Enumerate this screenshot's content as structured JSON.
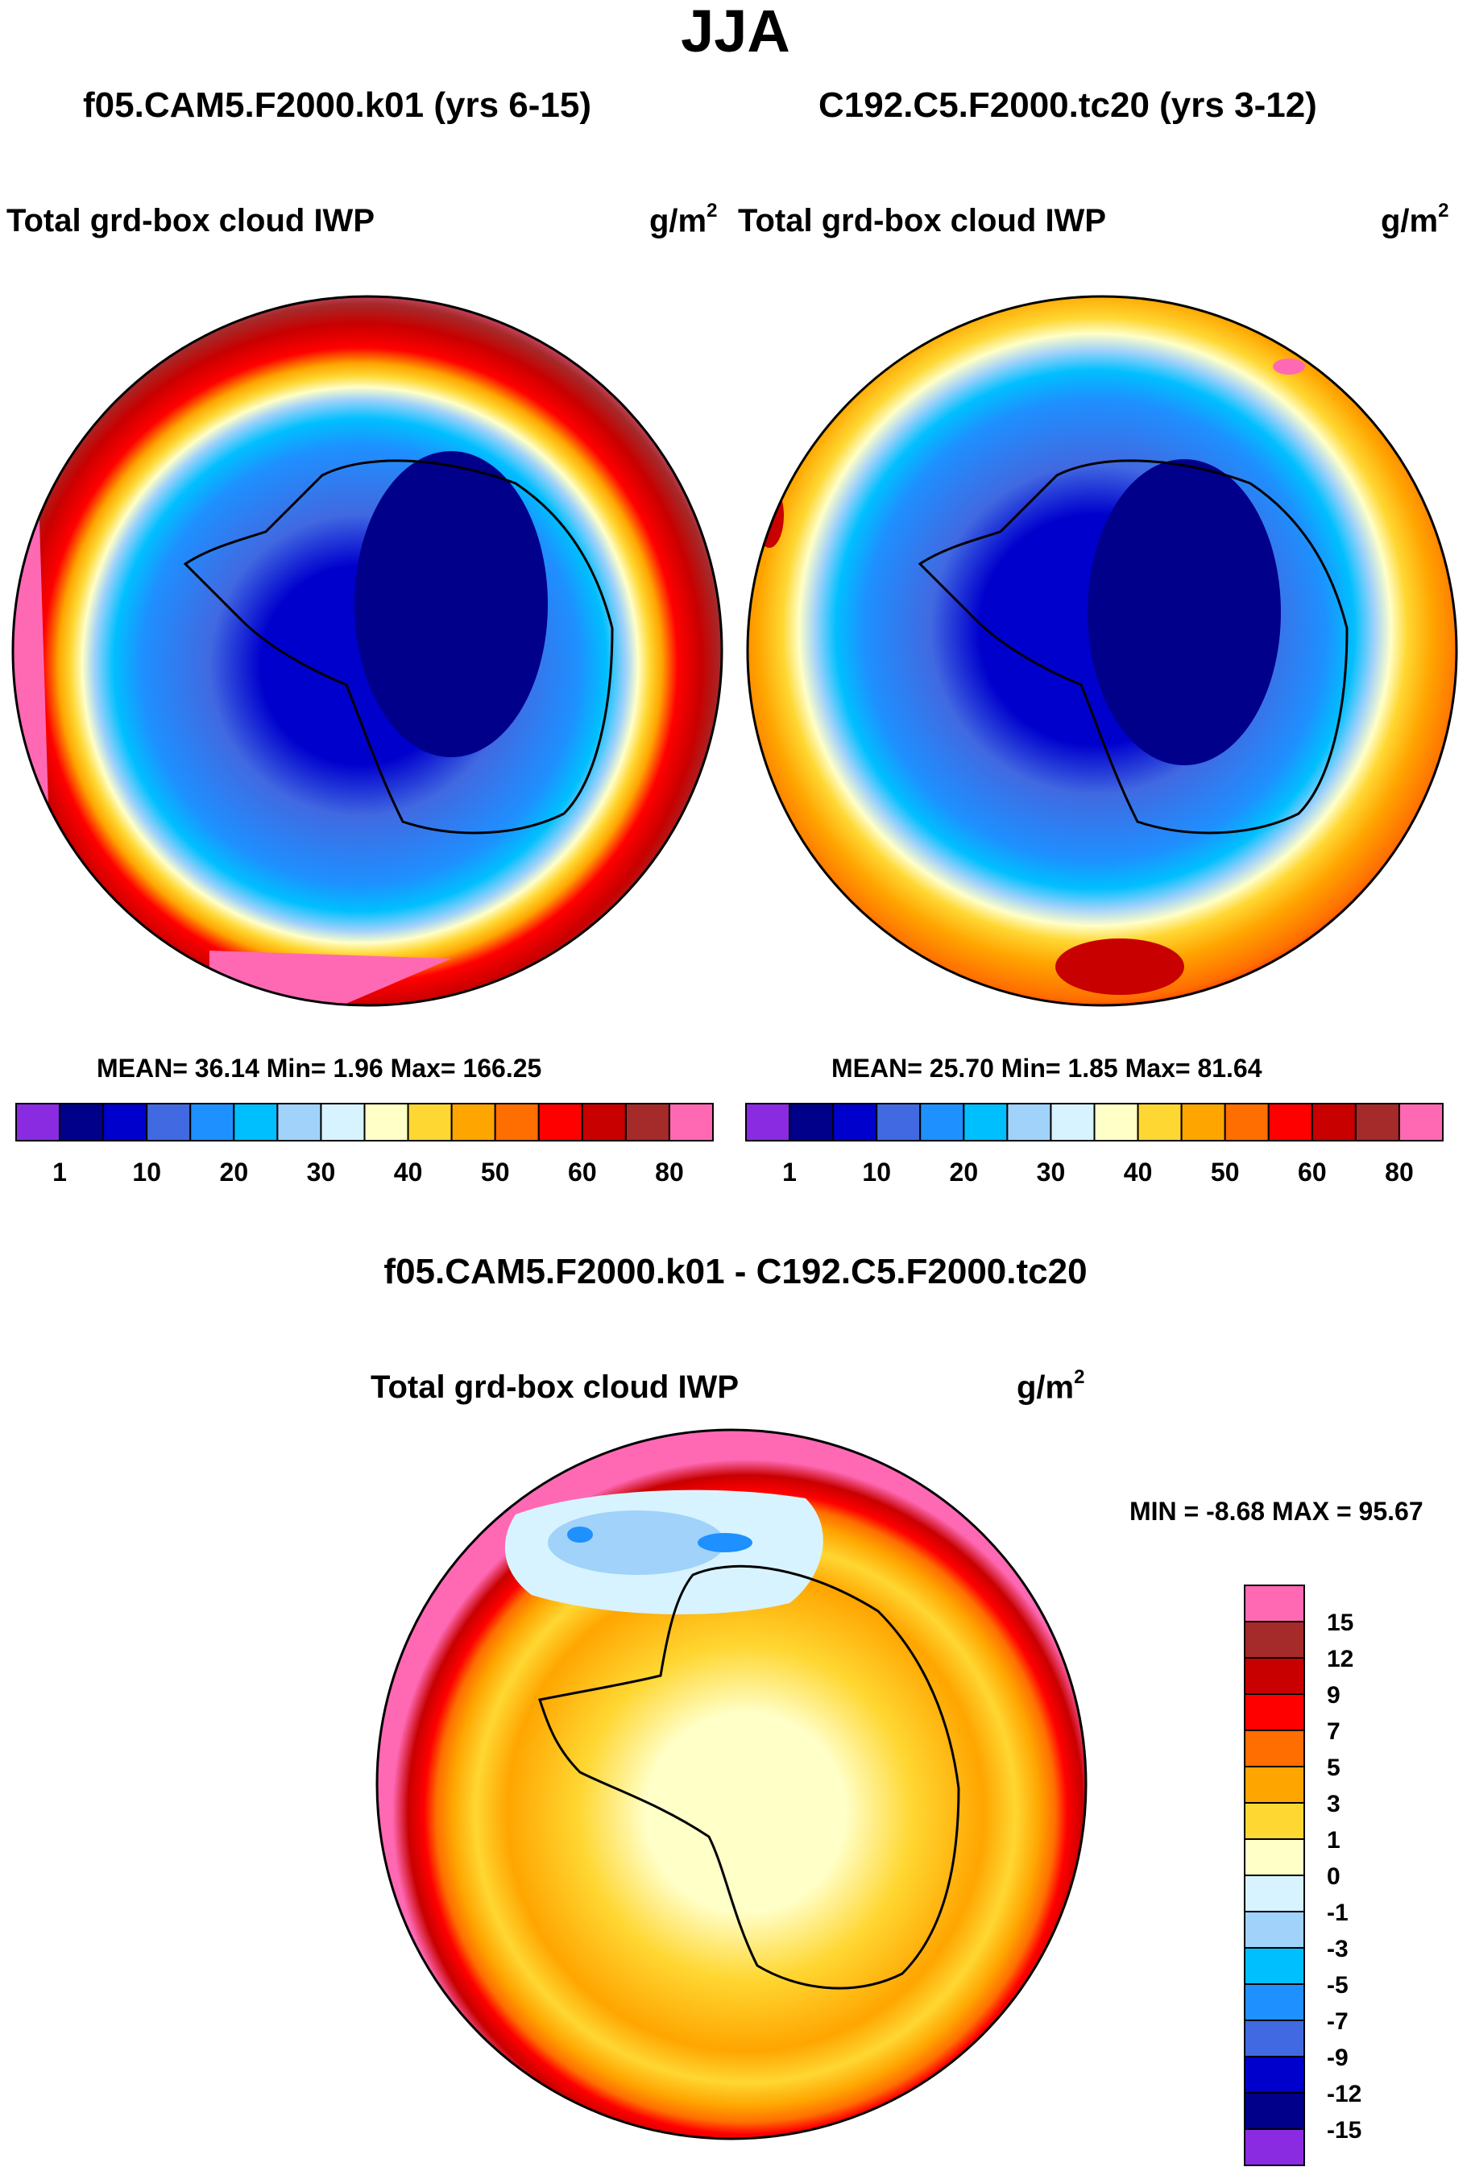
{
  "title": "JJA",
  "panel1": {
    "case": "f05.CAM5.F2000.k01 (yrs 6-15)",
    "var": "Total grd-box cloud IWP",
    "unit_base": "g/m",
    "unit_exp": "2",
    "stats": "MEAN=  36.14  Min=    1.96  Max= 166.25"
  },
  "panel2": {
    "case": "C192.C5.F2000.tc20 (yrs 3-12)",
    "var": "Total grd-box cloud IWP",
    "unit_base": "g/m",
    "unit_exp": "2",
    "stats": "MEAN=  25.70  Min=    1.85  Max=  81.64"
  },
  "diff": {
    "title": "f05.CAM5.F2000.k01 - C192.C5.F2000.tc20",
    "var": "Total grd-box cloud IWP",
    "unit_base": "g/m",
    "unit_exp": "2",
    "stats": "MIN =  -8.68 MAX =  95.67"
  },
  "chart_data": [
    {
      "type": "heatmap",
      "panel": "top-left",
      "projection": "south polar stereographic",
      "colorbar_ticks": [
        "1",
        "10",
        "20",
        "30",
        "40",
        "50",
        "60",
        "80"
      ],
      "colorbar_colors": [
        "#8a2be2",
        "#00008b",
        "#0000cd",
        "#4169e1",
        "#1e90ff",
        "#00bfff",
        "#a0d2fa",
        "#d7f3ff",
        "#ffffc8",
        "#ffd732",
        "#ffa500",
        "#ff6e00",
        "#ff0000",
        "#c80000",
        "#a52a2a",
        "#ff69b4"
      ],
      "mean": 36.14,
      "min": 1.96,
      "max": 166.25
    },
    {
      "type": "heatmap",
      "panel": "top-right",
      "projection": "south polar stereographic",
      "colorbar_ticks": [
        "1",
        "10",
        "20",
        "30",
        "40",
        "50",
        "60",
        "80"
      ],
      "colorbar_colors": [
        "#8a2be2",
        "#00008b",
        "#0000cd",
        "#4169e1",
        "#1e90ff",
        "#00bfff",
        "#a0d2fa",
        "#d7f3ff",
        "#ffffc8",
        "#ffd732",
        "#ffa500",
        "#ff6e00",
        "#ff0000",
        "#c80000",
        "#a52a2a",
        "#ff69b4"
      ],
      "mean": 25.7,
      "min": 1.85,
      "max": 81.64
    },
    {
      "type": "heatmap",
      "panel": "bottom-difference",
      "projection": "south polar stereographic",
      "colorbar_ticks": [
        "15",
        "12",
        "9",
        "7",
        "5",
        "3",
        "1",
        "0",
        "-1",
        "-3",
        "-5",
        "-7",
        "-9",
        "-12",
        "-15"
      ],
      "colorbar_colors": [
        "#ff69b4",
        "#a52a2a",
        "#c80000",
        "#ff0000",
        "#ff6e00",
        "#ffa500",
        "#ffd732",
        "#ffffc8",
        "#d7f3ff",
        "#a0d2fa",
        "#00bfff",
        "#1e90ff",
        "#4169e1",
        "#0000cd",
        "#00008b",
        "#8a2be2"
      ],
      "min": -8.68,
      "max": 95.67
    }
  ]
}
